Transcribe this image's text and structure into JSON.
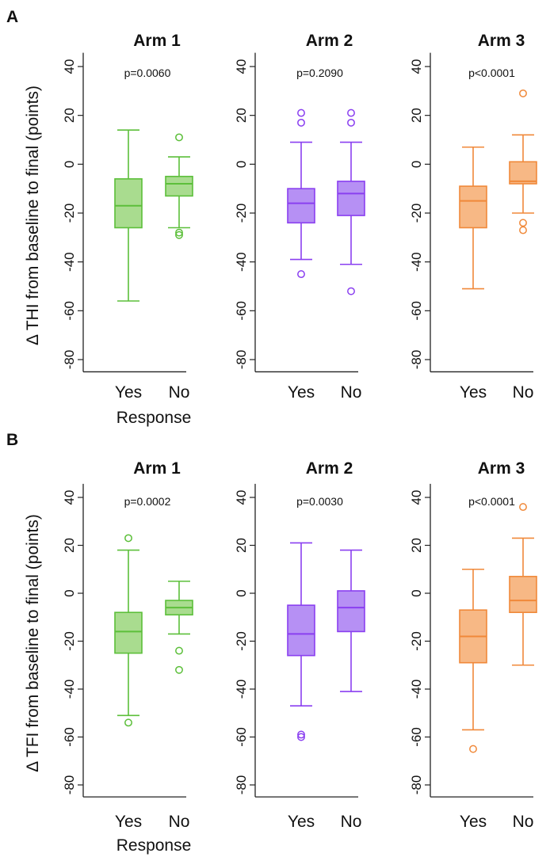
{
  "chart_data": [
    {
      "type": "box",
      "panel": "A",
      "ylabel": "Δ THI from baseline to final (points)",
      "xlabel": "Response",
      "ylim": [
        -85,
        45
      ],
      "yticks": [
        40,
        20,
        0,
        -20,
        -40,
        -60,
        -80
      ],
      "subplots": [
        {
          "title": "Arm 1",
          "color": "#5cbf3a",
          "fill": "#a9dc8f",
          "pvalue": "p=0.0060",
          "categories": [
            "Yes",
            "No"
          ],
          "boxes": [
            {
              "category": "Yes",
              "whisker_low": -56,
              "q1": -26,
              "median": -17,
              "q3": -6,
              "whisker_high": 14,
              "outliers": []
            },
            {
              "category": "No",
              "whisker_low": -26,
              "q1": -13,
              "median": -8,
              "q3": -5,
              "whisker_high": 3,
              "outliers": [
                11,
                -28,
                -29
              ]
            }
          ]
        },
        {
          "title": "Arm 2",
          "color": "#8a3ff0",
          "fill": "#b690f4",
          "pvalue": "p=0.2090",
          "categories": [
            "Yes",
            "No"
          ],
          "boxes": [
            {
              "category": "Yes",
              "whisker_low": -39,
              "q1": -24,
              "median": -16,
              "q3": -10,
              "whisker_high": 9,
              "outliers": [
                21,
                17,
                -45
              ]
            },
            {
              "category": "No",
              "whisker_low": -41,
              "q1": -21,
              "median": -12,
              "q3": -7,
              "whisker_high": 9,
              "outliers": [
                21,
                17,
                -52
              ]
            }
          ]
        },
        {
          "title": "Arm 3",
          "color": "#f0893a",
          "fill": "#f7b885",
          "pvalue": "p<0.0001",
          "categories": [
            "Yes",
            "No"
          ],
          "boxes": [
            {
              "category": "Yes",
              "whisker_low": -51,
              "q1": -26,
              "median": -15,
              "q3": -9,
              "whisker_high": 7,
              "outliers": []
            },
            {
              "category": "No",
              "whisker_low": -20,
              "q1": -8,
              "median": -7,
              "q3": 1,
              "whisker_high": 12,
              "outliers": [
                29,
                -24,
                -27
              ]
            }
          ]
        }
      ]
    },
    {
      "type": "box",
      "panel": "B",
      "ylabel": "Δ TFI from baseline to final (points)",
      "xlabel": "Response",
      "ylim": [
        -85,
        45
      ],
      "yticks": [
        40,
        20,
        0,
        -20,
        -40,
        -60,
        -80
      ],
      "subplots": [
        {
          "title": "Arm 1",
          "color": "#5cbf3a",
          "fill": "#a9dc8f",
          "pvalue": "p=0.0002",
          "categories": [
            "Yes",
            "No"
          ],
          "boxes": [
            {
              "category": "Yes",
              "whisker_low": -51,
              "q1": -25,
              "median": -16,
              "q3": -8,
              "whisker_high": 18,
              "outliers": [
                23,
                -54
              ]
            },
            {
              "category": "No",
              "whisker_low": -17,
              "q1": -9,
              "median": -6,
              "q3": -3,
              "whisker_high": 5,
              "outliers": [
                -24,
                -32
              ]
            }
          ]
        },
        {
          "title": "Arm 2",
          "color": "#8a3ff0",
          "fill": "#b690f4",
          "pvalue": "p=0.0030",
          "categories": [
            "Yes",
            "No"
          ],
          "boxes": [
            {
              "category": "Yes",
              "whisker_low": -47,
              "q1": -26,
              "median": -17,
              "q3": -5,
              "whisker_high": 21,
              "outliers": [
                -59,
                -60
              ]
            },
            {
              "category": "No",
              "whisker_low": -41,
              "q1": -16,
              "median": -6,
              "q3": 1,
              "whisker_high": 18,
              "outliers": []
            }
          ]
        },
        {
          "title": "Arm 3",
          "color": "#f0893a",
          "fill": "#f7b885",
          "pvalue": "p<0.0001",
          "categories": [
            "Yes",
            "No"
          ],
          "boxes": [
            {
              "category": "Yes",
              "whisker_low": -57,
              "q1": -29,
              "median": -18,
              "q3": -7,
              "whisker_high": 10,
              "outliers": [
                -65
              ]
            },
            {
              "category": "No",
              "whisker_low": -30,
              "q1": -8,
              "median": -3,
              "q3": 7,
              "whisker_high": 23,
              "outliers": [
                36
              ]
            }
          ]
        }
      ]
    }
  ]
}
